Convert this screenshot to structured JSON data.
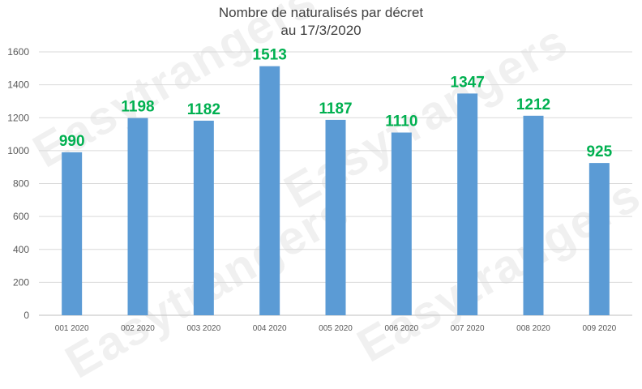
{
  "watermark": {
    "text": "Easytrangers"
  },
  "chart_data": {
    "type": "bar",
    "title_line1": "Nombre de naturalisés par décret",
    "title_line2": "au 17/3/2020",
    "categories": [
      "001 2020",
      "002 2020",
      "003 2020",
      "004 2020",
      "005 2020",
      "006 2020",
      "007 2020",
      "008 2020",
      "009 2020"
    ],
    "values": [
      990,
      1198,
      1182,
      1513,
      1187,
      1110,
      1347,
      1212,
      925
    ],
    "yticks": [
      0,
      200,
      400,
      600,
      800,
      1000,
      1200,
      1400,
      1600
    ],
    "ylim": [
      0,
      1600
    ],
    "grid": true,
    "legend": "none",
    "bar_color": "#5b9bd5",
    "label_color": "#00b050",
    "grid_color": "#d9d9d9"
  }
}
